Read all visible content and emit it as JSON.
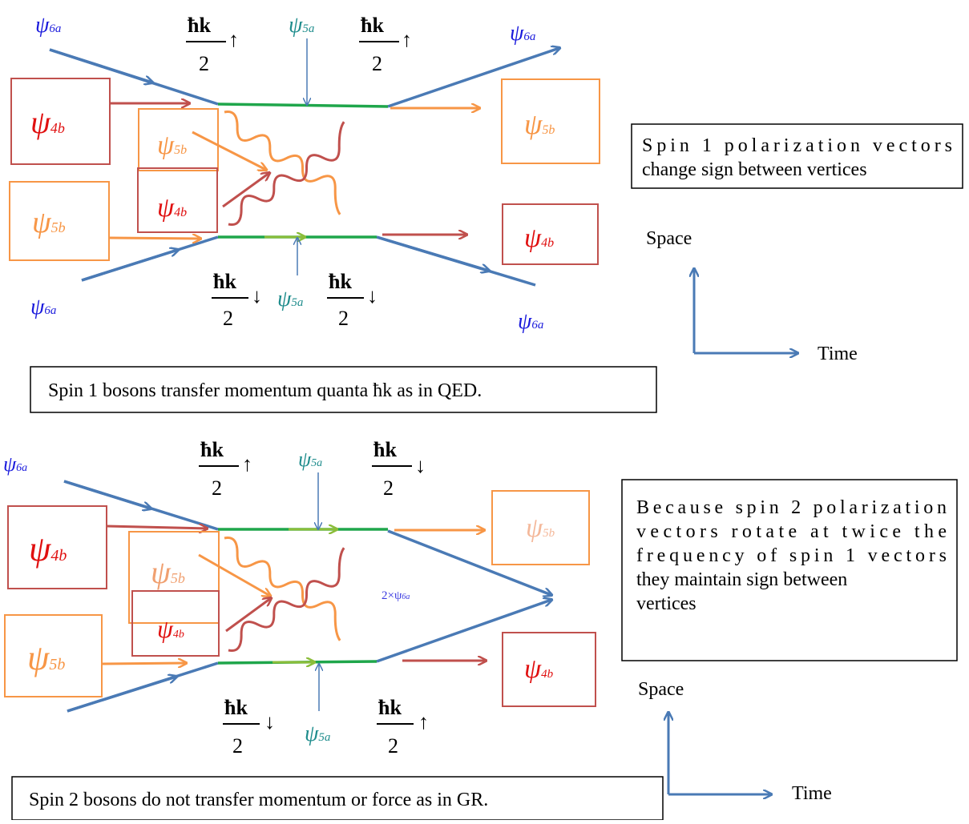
{
  "colors": {
    "blue": "#4a7ab5",
    "red": "#c0504d",
    "orange": "#f79646",
    "green": "#1fa64b",
    "teal": "#1e8c8c",
    "psi_blue": "#1a1adc",
    "psi_red": "#e01010"
  },
  "symbols": {
    "psi": "ψ",
    "sub_6a": "6a",
    "sub_5a": "5a",
    "sub_4b": "4b",
    "sub_5b": "5b",
    "hbar_k": "ħk",
    "two": "2",
    "up_arrow": "↑",
    "down_arrow": "↓",
    "two_times": "2×ψ",
    "sub_6a_small": "6a"
  },
  "top_diagram": {
    "note_lines": [
      "Spin 1 polarization vectors",
      "change sign between vertices"
    ],
    "caption": "Spin 1 bosons transfer momentum quanta ħk as in QED.",
    "axis_space": "Space",
    "axis_time": "Time"
  },
  "bottom_diagram": {
    "note_lines": [
      "Because spin 2 polarization",
      "vectors rotate at twice the",
      "frequency of spin 1 vectors",
      "they maintain sign between",
      "vertices"
    ],
    "caption": "Spin 2 bosons do not transfer momentum or force as in GR.",
    "axis_space": "Space",
    "axis_time": "Time"
  }
}
